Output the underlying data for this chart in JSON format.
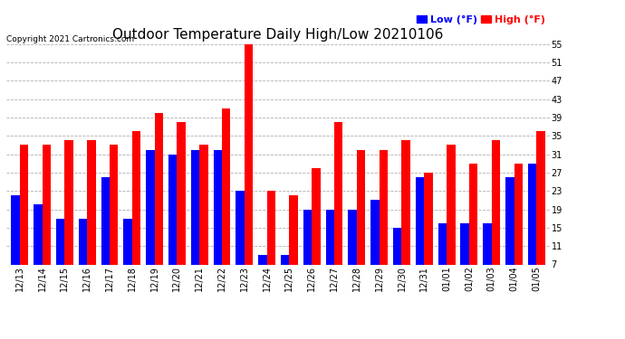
{
  "title": "Outdoor Temperature Daily High/Low 20210106",
  "copyright": "Copyright 2021 Cartronics.com",
  "categories": [
    "12/13",
    "12/14",
    "12/15",
    "12/16",
    "12/17",
    "12/18",
    "12/19",
    "12/20",
    "12/21",
    "12/22",
    "12/23",
    "12/24",
    "12/25",
    "12/26",
    "12/27",
    "12/28",
    "12/29",
    "12/30",
    "12/31",
    "01/01",
    "01/02",
    "01/03",
    "01/04",
    "01/05"
  ],
  "high_values": [
    33.0,
    33.0,
    34.0,
    34.0,
    33.0,
    36.0,
    40.0,
    38.0,
    33.0,
    41.0,
    55.0,
    23.0,
    22.0,
    28.0,
    38.0,
    32.0,
    32.0,
    34.0,
    27.0,
    33.0,
    29.0,
    34.0,
    29.0,
    36.0
  ],
  "low_values": [
    22.0,
    20.0,
    17.0,
    17.0,
    26.0,
    17.0,
    32.0,
    31.0,
    32.0,
    32.0,
    23.0,
    9.0,
    9.0,
    19.0,
    19.0,
    19.0,
    21.0,
    15.0,
    26.0,
    16.0,
    16.0,
    16.0,
    26.0,
    29.0
  ],
  "high_color": "#ff0000",
  "low_color": "#0000ff",
  "background_color": "#ffffff",
  "grid_color": "#b0b0b0",
  "ylim": [
    7.0,
    55.0
  ],
  "yticks": [
    7.0,
    11.0,
    15.0,
    19.0,
    23.0,
    27.0,
    31.0,
    35.0,
    39.0,
    43.0,
    47.0,
    51.0,
    55.0
  ],
  "bar_width": 0.38,
  "title_fontsize": 11,
  "tick_fontsize": 7,
  "legend_fontsize": 8,
  "copyright_fontsize": 6.5
}
